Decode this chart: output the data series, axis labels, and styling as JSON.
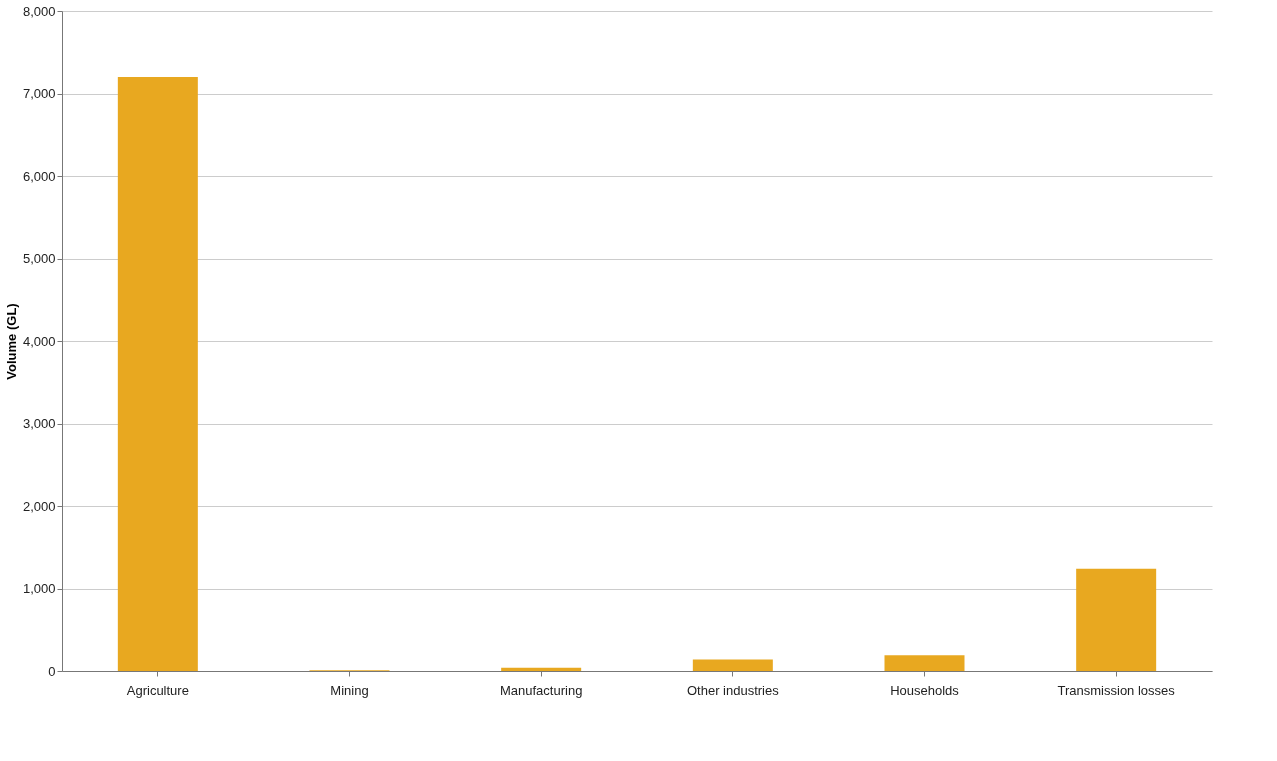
{
  "chart_data": {
    "type": "bar",
    "ylabel": "Volume (GL)",
    "categories": [
      "Agriculture",
      "Mining",
      "Manufacturing",
      "Other industries",
      "Households",
      "Transmission losses"
    ],
    "values": [
      7200,
      10,
      40,
      140,
      190,
      1240
    ],
    "color": "#e8a820",
    "ylim": [
      0,
      8000
    ],
    "yticks": [
      0,
      {
        "value": 1000,
        "label": "1,000"
      },
      {
        "value": 2000,
        "label": "2,000"
      },
      {
        "value": 3000,
        "label": "3,000"
      },
      {
        "value": 4000,
        "label": "4,000"
      },
      {
        "value": 5000,
        "label": "5,000"
      },
      {
        "value": 6000,
        "label": "6,000"
      },
      {
        "value": 7000,
        "label": "7,000"
      },
      {
        "value": 8000,
        "label": "8,000"
      }
    ],
    "grid": "y"
  }
}
